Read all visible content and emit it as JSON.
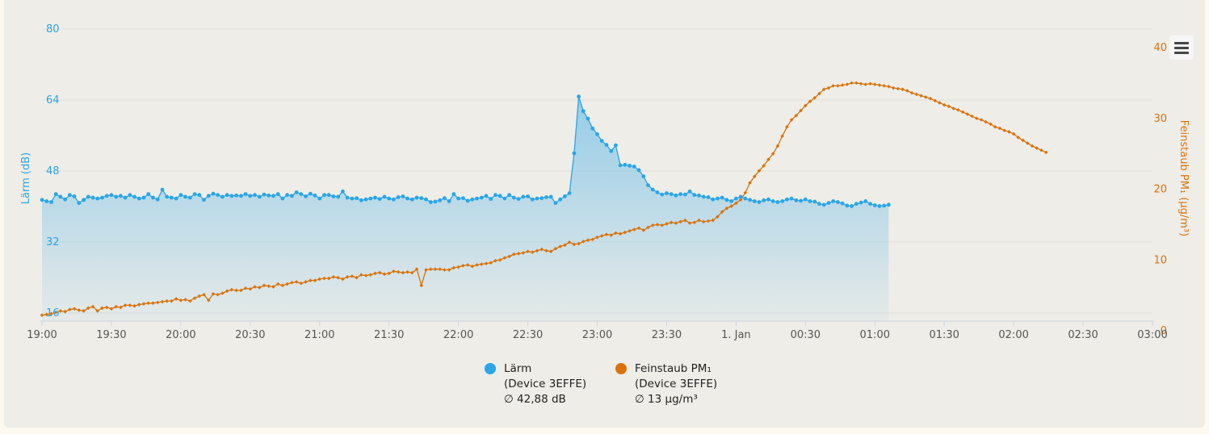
{
  "chart_data": {
    "type": "line",
    "x_range": [
      "19:00",
      "03:00"
    ],
    "x_ticks": [
      "19:00",
      "19:30",
      "20:00",
      "20:30",
      "21:00",
      "21:30",
      "22:00",
      "22:30",
      "23:00",
      "23:30",
      "1. Jan",
      "00:30",
      "01:00",
      "01:30",
      "02:00",
      "02:30",
      "03:00"
    ],
    "y_left": {
      "label": "Lärm (dB)",
      "ticks": [
        "16",
        "32",
        "48",
        "64",
        "80"
      ],
      "range": [
        16,
        80
      ]
    },
    "y_right": {
      "label": "Feinstaub PM₁ (µg/m³)",
      "ticks": [
        "0",
        "10",
        "20",
        "30",
        "40"
      ],
      "range": [
        0,
        40
      ]
    },
    "grid": true,
    "legend_position": "bottom",
    "series": [
      {
        "name": "Lärm",
        "legend_lines": [
          "Lärm",
          "(Device 3EFFE)",
          "∅ 42,88 dB"
        ],
        "color": "#29a5e8",
        "axis": "left",
        "area": true,
        "time_start": "19:00",
        "time_step_minutes": 2,
        "values": [
          41.5,
          41.2,
          41,
          42.8,
          42.2,
          41.6,
          42.6,
          42.3,
          40.8,
          41.5,
          42.2,
          42,
          41.8,
          42,
          42.4,
          42.6,
          42.2,
          42.4,
          42,
          42.6,
          42.2,
          41.8,
          42,
          42.8,
          42,
          41.6,
          43.8,
          42.2,
          42,
          41.8,
          42.6,
          42.2,
          42,
          42.8,
          42.6,
          41.5,
          42.4,
          42.9,
          42.6,
          42.2,
          42.6,
          42.4,
          42.5,
          42.4,
          42.8,
          42.4,
          42.6,
          42.2,
          42.7,
          42.5,
          42.4,
          42.8,
          41.8,
          42.6,
          42.4,
          43.2,
          42.8,
          42.3,
          42.9,
          42.5,
          41.8,
          42.6,
          42.6,
          42.3,
          42.2,
          43.4,
          42,
          41.8,
          41.9,
          41.4,
          41.6,
          41.8,
          42,
          41.7,
          42.2,
          41.8,
          41.6,
          42.1,
          42.3,
          41.8,
          41.6,
          42,
          41.9,
          41.6,
          41,
          41.1,
          41.4,
          41.9,
          41.2,
          42.8,
          41.8,
          41.9,
          41.3,
          41.6,
          41.8,
          42,
          42.4,
          41.7,
          42.6,
          42.4,
          41.8,
          42.6,
          42,
          41.7,
          42.2,
          42.3,
          41.6,
          41.8,
          41.9,
          42.1,
          42.2,
          40.8,
          41.6,
          42.3,
          43,
          52,
          64.8,
          61.5,
          59.8,
          57.6,
          56.3,
          54.8,
          53.9,
          52.5,
          53.8,
          49.3,
          49.4,
          49.2,
          49,
          48.2,
          46.8,
          44.8,
          43.8,
          43.2,
          42.7,
          43,
          42.8,
          42.5,
          42.8,
          42.7,
          43.4,
          42.6,
          42.5,
          42.2,
          42.1,
          41.6,
          41.8,
          42,
          41.5,
          41.2,
          41.8,
          42.2,
          41.8,
          41.5,
          41.2,
          41,
          41.4,
          41.6,
          41.2,
          41,
          41.2,
          41.6,
          41.8,
          41.4,
          41.3,
          41.6,
          41.2,
          41.1,
          40.6,
          40.4,
          40.8,
          41.2,
          41,
          40.7,
          40.2,
          40.1,
          40.6,
          40.9,
          41.2,
          40.6,
          40.3,
          40.1,
          40.2,
          40.4
        ]
      },
      {
        "name": "Feinstaub PM₁",
        "legend_lines": [
          "Feinstaub PM₁",
          "(Device 3EFFE)",
          "∅ 13 µg/m³"
        ],
        "color": "#d9720c",
        "axis": "right",
        "area": false,
        "time_start": "19:00",
        "time_step_minutes": 2,
        "values": [
          2.2,
          2.3,
          2.4,
          2.6,
          2.8,
          2.7,
          3,
          3.1,
          2.9,
          2.8,
          3.2,
          3.4,
          2.8,
          3.2,
          3.3,
          3.1,
          3.4,
          3.3,
          3.6,
          3.6,
          3.5,
          3.7,
          3.8,
          3.9,
          3.9,
          4,
          4.1,
          4.2,
          4.2,
          4.5,
          4.3,
          4.4,
          4.2,
          4.6,
          4.9,
          5.1,
          4.3,
          5.2,
          5.1,
          5.3,
          5.6,
          5.8,
          5.7,
          5.7,
          6,
          5.9,
          6.2,
          6.1,
          6.4,
          6.3,
          6.2,
          6.6,
          6.4,
          6.6,
          6.8,
          6.9,
          6.7,
          6.9,
          7.1,
          7.1,
          7.3,
          7.4,
          7.4,
          7.6,
          7.5,
          7.3,
          7.6,
          7.7,
          7.5,
          7.9,
          7.8,
          7.9,
          8.1,
          8.2,
          8,
          8.1,
          8.4,
          8.3,
          8.2,
          8.3,
          8.2,
          8.7,
          6.4,
          8.6,
          8.7,
          8.7,
          8.7,
          8.6,
          8.6,
          8.9,
          9,
          9.2,
          9.3,
          9.1,
          9.3,
          9.4,
          9.5,
          9.6,
          9.9,
          10,
          10.3,
          10.5,
          10.8,
          10.9,
          11,
          11.2,
          11.1,
          11.3,
          11.5,
          11.3,
          11.2,
          11.6,
          11.9,
          12.1,
          12.5,
          12.2,
          12.3,
          12.6,
          12.8,
          12.9,
          13.2,
          13.4,
          13.6,
          13.5,
          13.8,
          13.7,
          13.9,
          14.1,
          14.3,
          14.5,
          14.2,
          14.6,
          14.9,
          15,
          14.9,
          15.1,
          15.3,
          15.2,
          15.4,
          15.6,
          15.2,
          15.3,
          15.6,
          15.4,
          15.5,
          15.6,
          16.1,
          16.8,
          17.3,
          17.6,
          18,
          18.5,
          19.5,
          20.9,
          21.8,
          22.6,
          23.3,
          24.2,
          25,
          26.1,
          27.5,
          28.8,
          29.8,
          30.4,
          31.1,
          31.8,
          32.4,
          32.9,
          33.5,
          34.1,
          34.3,
          34.6,
          34.6,
          34.7,
          34.8,
          35,
          35,
          34.9,
          34.8,
          34.9,
          34.8,
          34.7,
          34.6,
          34.5,
          34.3,
          34.2,
          34.1,
          33.9,
          33.6,
          33.4,
          33.2,
          33,
          32.8,
          32.5,
          32.2,
          31.9,
          31.7,
          31.4,
          31.2,
          30.9,
          30.6,
          30.3,
          30,
          29.8,
          29.5,
          29.2,
          28.8,
          28.6,
          28.3,
          28.1,
          27.8,
          27.3,
          26.9,
          26.5,
          26.1,
          25.8,
          25.5,
          25.2
        ]
      }
    ]
  },
  "menu": {
    "icon": "hamburger-icon"
  }
}
